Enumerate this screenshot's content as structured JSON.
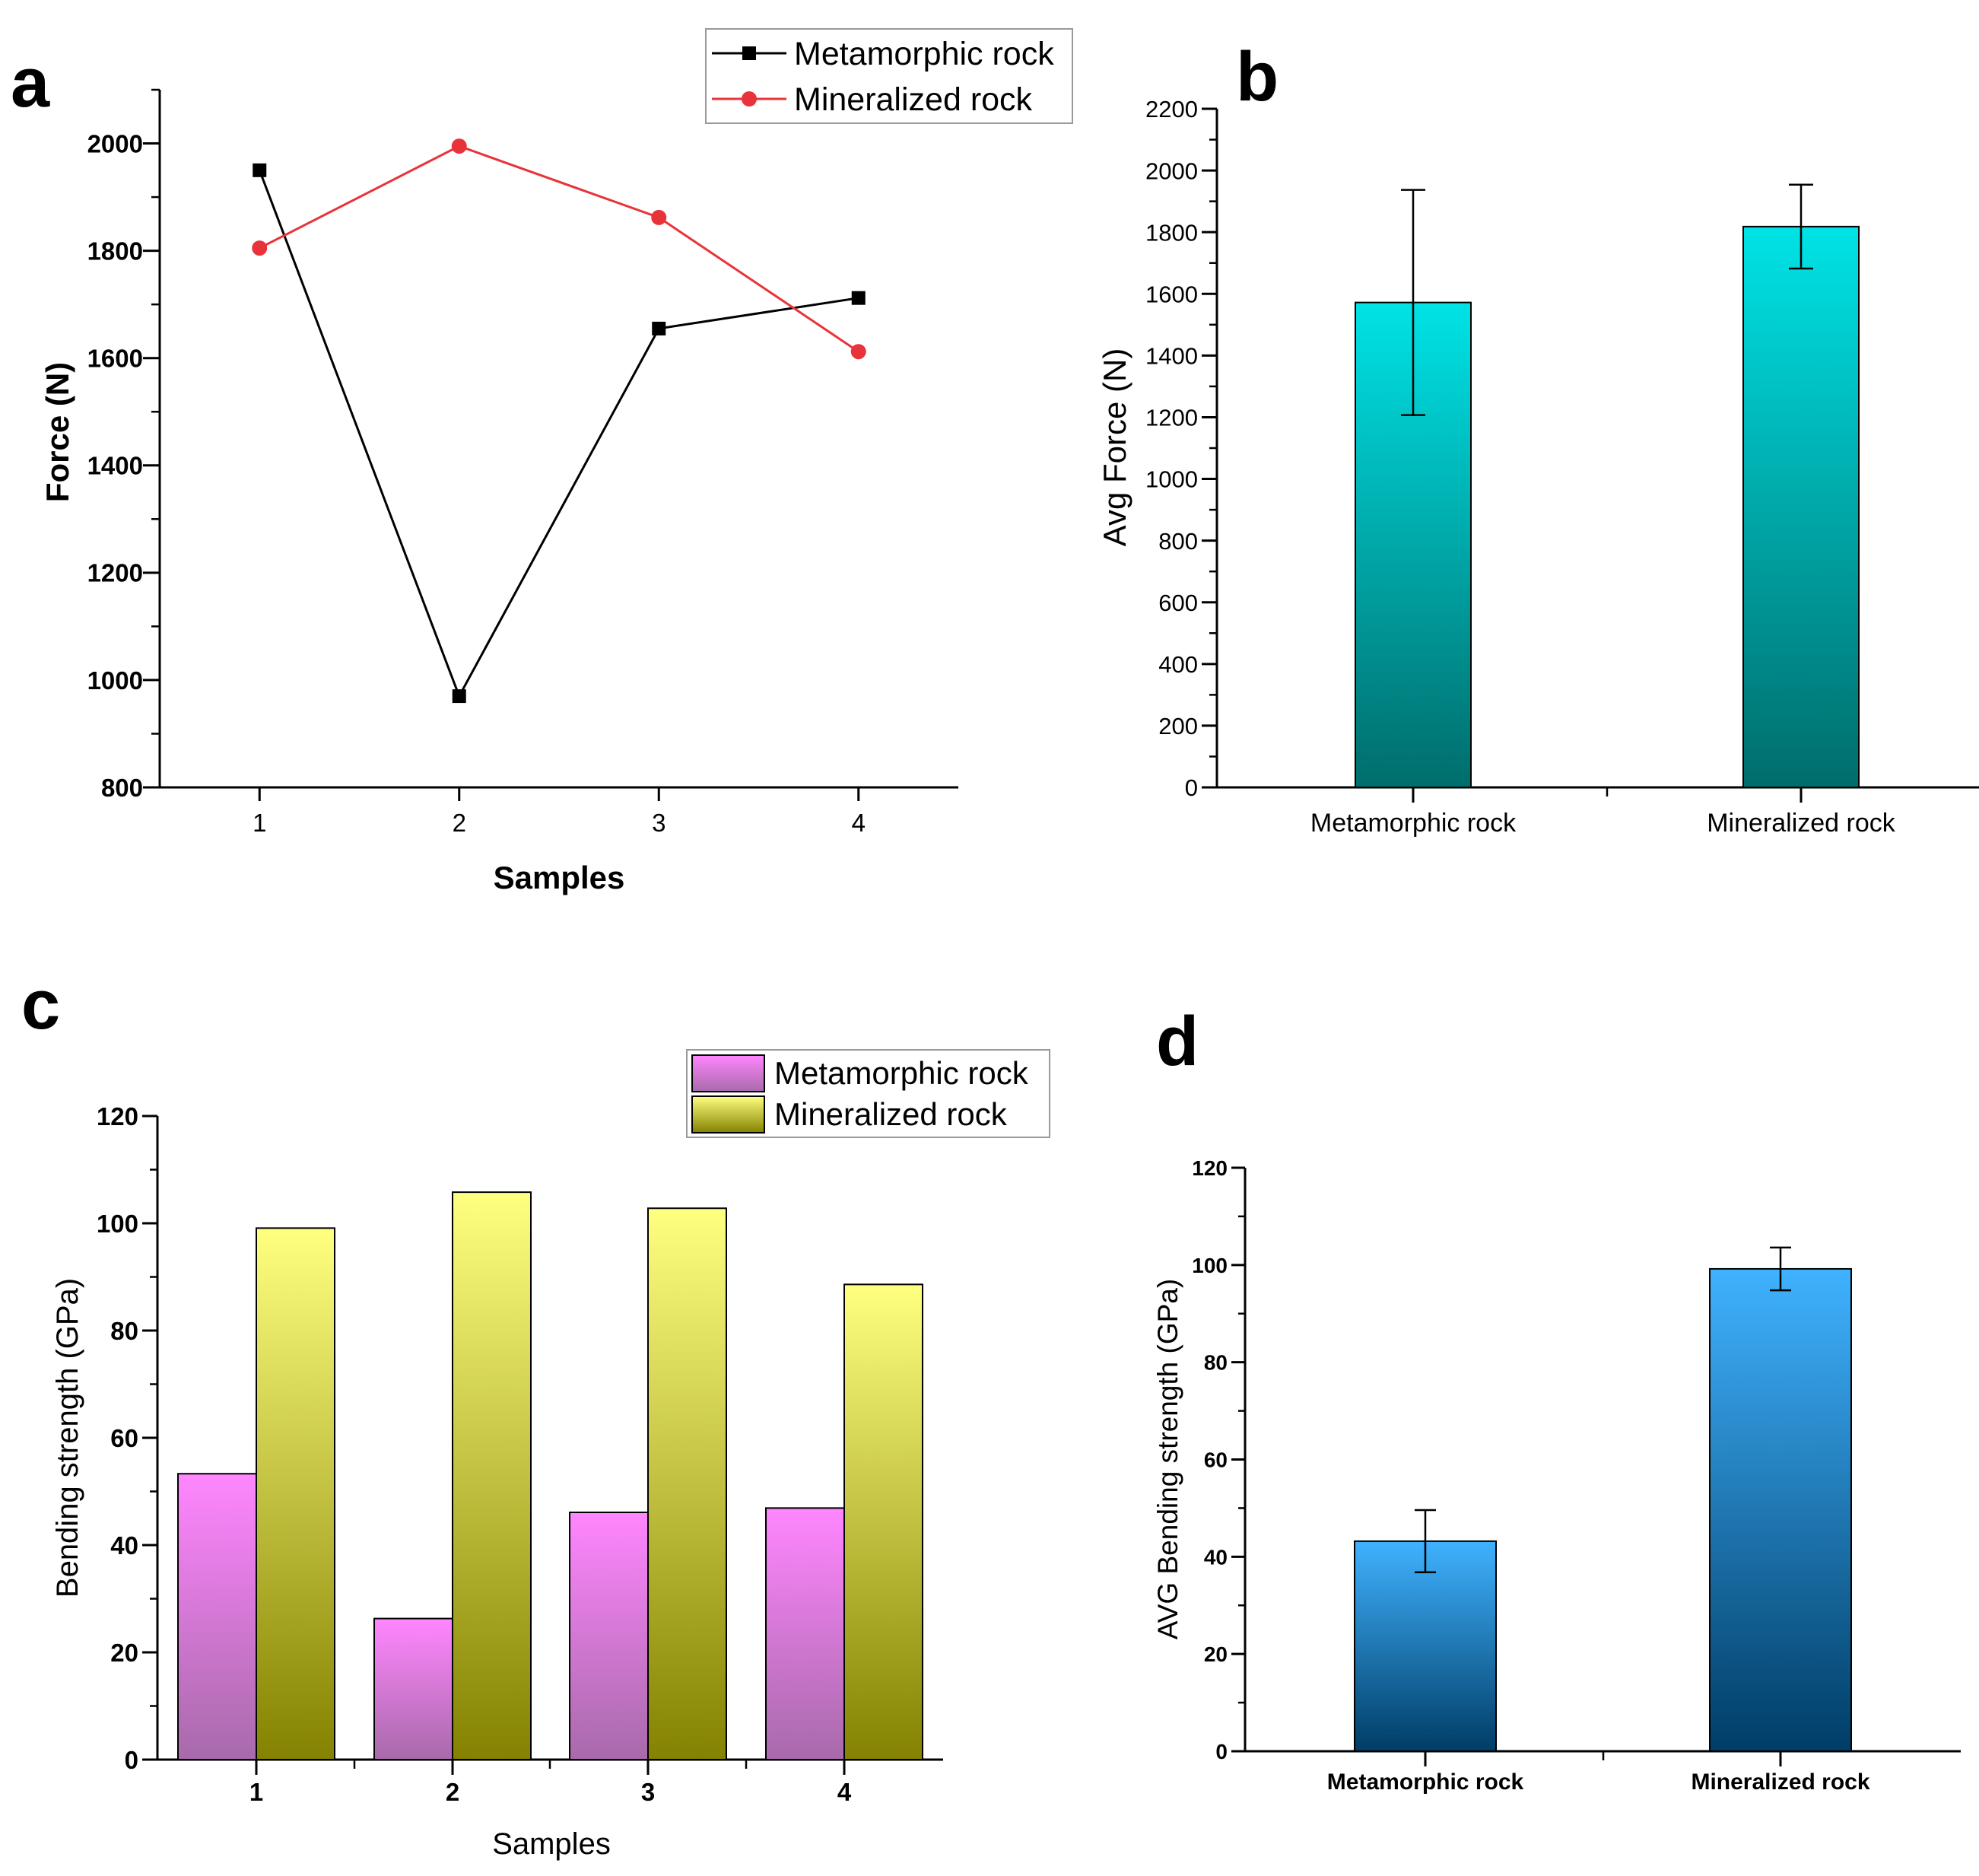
{
  "panel_labels": {
    "a": "a",
    "b": "b",
    "c": "c",
    "d": "d"
  },
  "colors": {
    "metamorphic_line": "#000000",
    "mineralized_line": "#e8333a",
    "teal_top": "#00e3e6",
    "teal_bottom": "#006d6c",
    "pink_top": "#ff86ff",
    "pink_bottom": "#a86aaa",
    "olive_top": "#ffff80",
    "olive_bottom": "#848200",
    "blue_top": "#40b2ff",
    "blue_bottom": "#003d66"
  },
  "chart_data": [
    {
      "panel": "a",
      "type": "line",
      "title": "",
      "xlabel": "Samples",
      "ylabel": "Force (N)",
      "x": [
        1,
        2,
        3,
        4
      ],
      "xlim": [
        0.5,
        4.5
      ],
      "ylim": [
        800,
        2100
      ],
      "yticks": [
        800,
        1000,
        1200,
        1400,
        1600,
        1800,
        2000
      ],
      "xtick_labels": [
        "1",
        "2",
        "3",
        "4"
      ],
      "legend_position": "top-right",
      "series": [
        {
          "name": "Metamorphic rock",
          "marker": "square",
          "values": [
            1950,
            970,
            1655,
            1712
          ]
        },
        {
          "name": "Mineralized rock",
          "marker": "circle",
          "values": [
            1805,
            1995,
            1862,
            1612
          ]
        }
      ]
    },
    {
      "panel": "b",
      "type": "bar",
      "title": "",
      "xlabel": "",
      "ylabel": "Avg Force (N)",
      "categories": [
        "Metamorphic rock",
        "Mineralized rock"
      ],
      "values": [
        1572,
        1818
      ],
      "errors": [
        365,
        136
      ],
      "ylim": [
        0,
        2200
      ],
      "yticks": [
        0,
        200,
        400,
        600,
        800,
        1000,
        1200,
        1400,
        1600,
        1800,
        2000,
        2200
      ]
    },
    {
      "panel": "c",
      "type": "bar",
      "title": "",
      "xlabel": "Samples",
      "ylabel": "Bending strength (GPa)",
      "categories": [
        "1",
        "2",
        "3",
        "4"
      ],
      "ylim": [
        0,
        120
      ],
      "yticks": [
        0,
        20,
        40,
        60,
        80,
        100,
        120
      ],
      "legend_position": "top-right",
      "series": [
        {
          "name": "Metamorphic rock",
          "values": [
            53.3,
            26.3,
            46.1,
            46.9
          ]
        },
        {
          "name": "Mineralized rock",
          "values": [
            99.1,
            105.8,
            102.8,
            88.6
          ]
        }
      ]
    },
    {
      "panel": "d",
      "type": "bar",
      "title": "",
      "xlabel": "",
      "ylabel": "AVG Bending strength (GPa)",
      "categories": [
        "Metamorphic rock",
        "Mineralized rock"
      ],
      "values": [
        43.2,
        99.2
      ],
      "errors": [
        6.4,
        4.4
      ],
      "ylim": [
        0,
        120
      ],
      "yticks": [
        0,
        20,
        40,
        60,
        80,
        100,
        120
      ]
    }
  ]
}
